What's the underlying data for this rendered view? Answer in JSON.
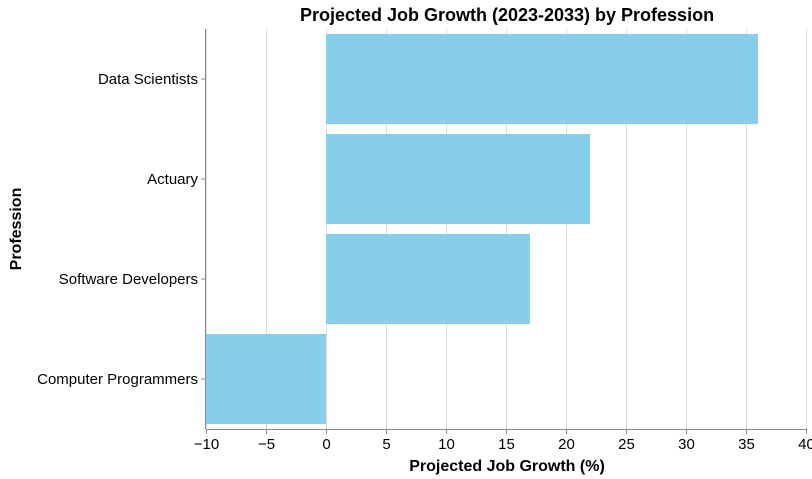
{
  "chart_data": {
    "type": "bar",
    "orientation": "horizontal",
    "title": "Projected Job Growth (2023-2033) by Profession",
    "xlabel": "Projected Job Growth (%)",
    "ylabel": "Profession",
    "categories": [
      "Data Scientists",
      "Actuary",
      "Software Developers",
      "Computer Programmers"
    ],
    "values": [
      36,
      22,
      17,
      -10
    ],
    "xlim": [
      -10,
      40
    ],
    "xticks": [
      -10,
      -5,
      0,
      5,
      10,
      15,
      20,
      25,
      30,
      35,
      40
    ],
    "xtick_labels": [
      "−10",
      "−5",
      "0",
      "5",
      "10",
      "15",
      "20",
      "25",
      "30",
      "35",
      "40"
    ],
    "bar_color": "#87ceeb",
    "grid": "vertical"
  }
}
